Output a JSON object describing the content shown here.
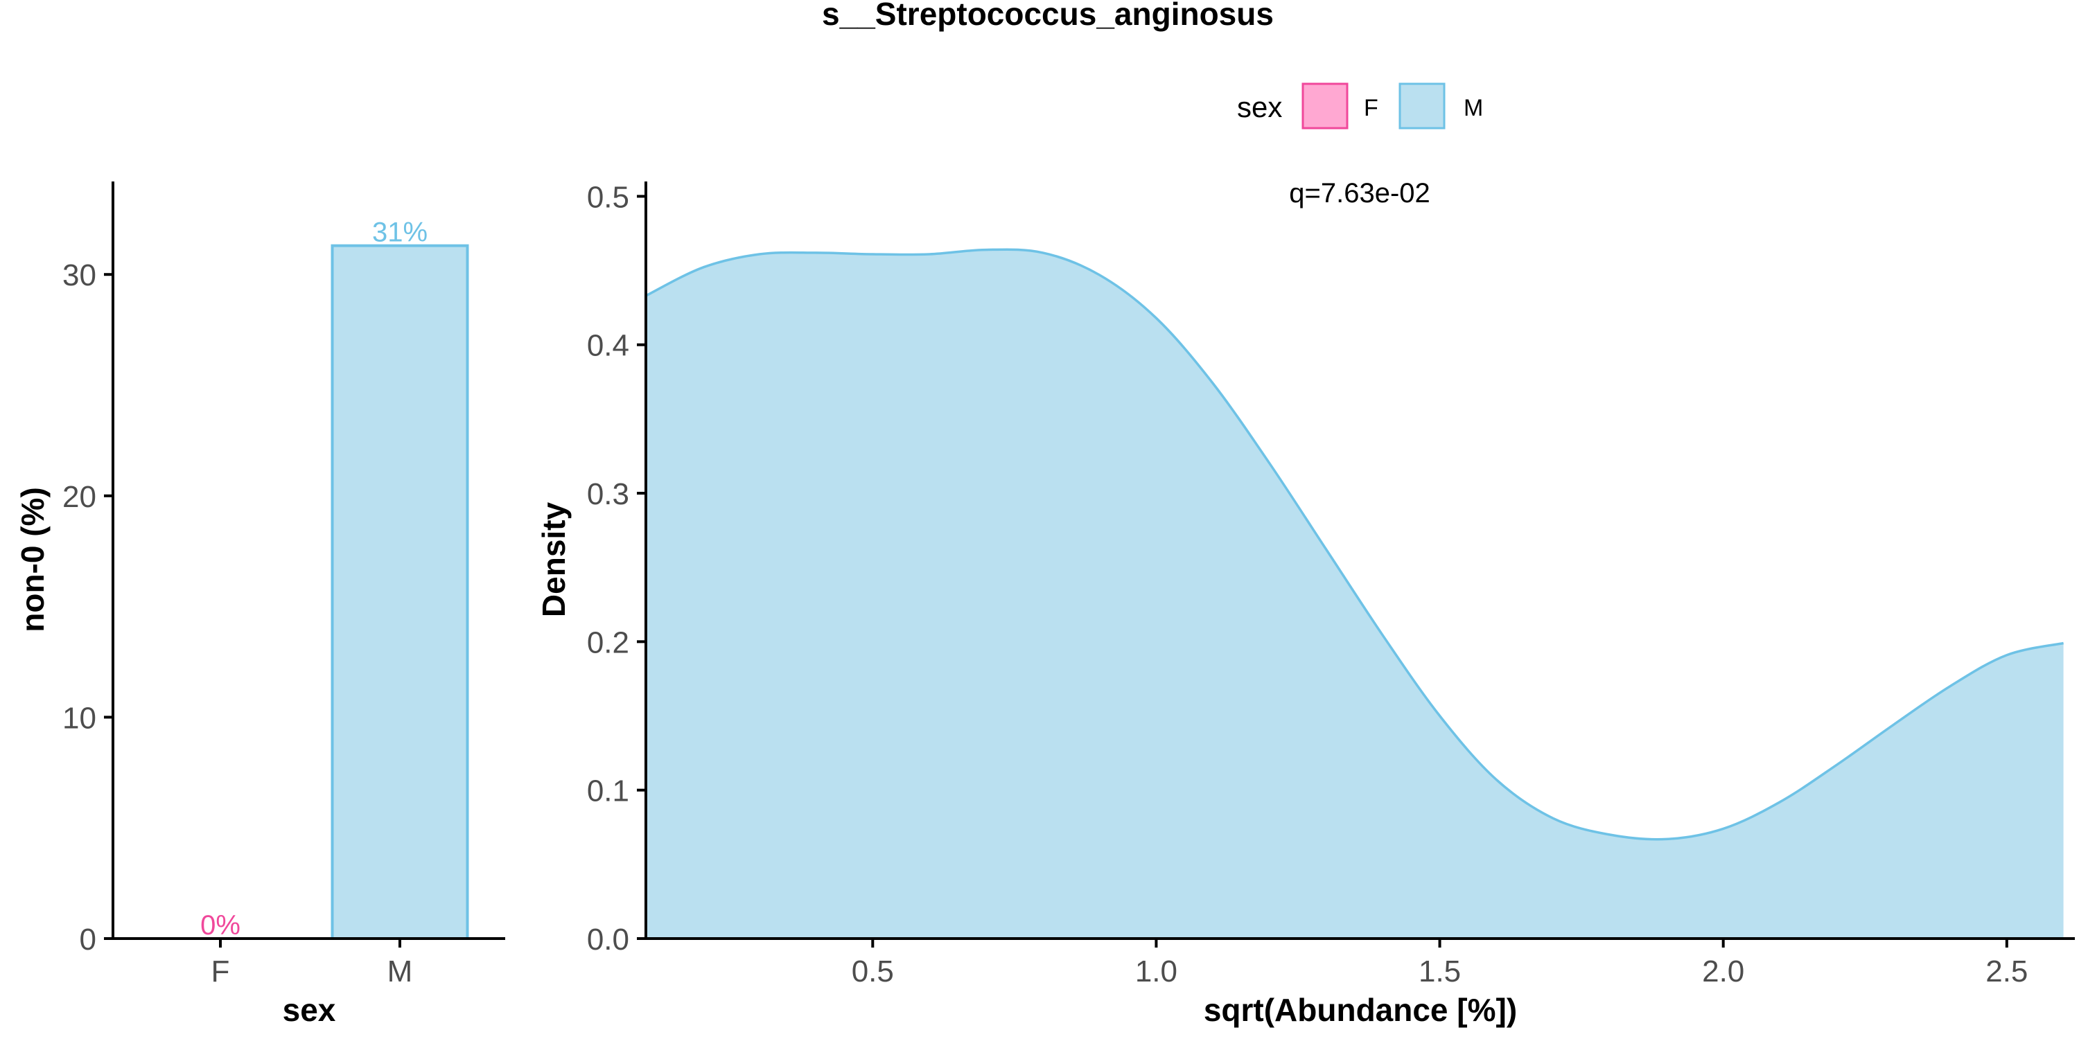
{
  "title": "s__Streptococcus_anginosus",
  "legend": {
    "title": "sex",
    "items": [
      {
        "label": "F",
        "fill": "#FFA8D2",
        "stroke": "#F0489B"
      },
      {
        "label": "M",
        "fill": "#BAE0F0",
        "stroke": "#6EC2E6"
      }
    ]
  },
  "colors": {
    "F_fill": "#FFA8D2",
    "F_stroke": "#F0489B",
    "F_text": "#F0489B",
    "M_fill": "#BAE0F0",
    "M_stroke": "#6EC2E6",
    "M_text": "#6EC2E6",
    "axis": "#000000",
    "tick_text": "#4d4d4d"
  },
  "chart_data": [
    {
      "type": "bar",
      "categories": [
        "F",
        "M"
      ],
      "values": [
        0,
        31.3
      ],
      "value_labels": [
        "0%",
        "31%"
      ],
      "xlabel": "sex",
      "ylabel": "non-0 (%)",
      "ylim": [
        0,
        34.2
      ],
      "yticks": [
        0,
        10,
        20,
        30
      ],
      "ytick_labels": [
        "0",
        "10",
        "20",
        "30"
      ],
      "grid": false
    },
    {
      "type": "area",
      "series": [
        {
          "name": "M",
          "x": [
            0.1,
            0.2,
            0.3,
            0.4,
            0.5,
            0.6,
            0.7,
            0.8,
            0.9,
            1.0,
            1.1,
            1.2,
            1.3,
            1.4,
            1.5,
            1.6,
            1.7,
            1.8,
            1.9,
            2.0,
            2.1,
            2.2,
            2.3,
            2.4,
            2.5,
            2.6
          ],
          "y": [
            0.433,
            0.452,
            0.461,
            0.462,
            0.461,
            0.461,
            0.464,
            0.462,
            0.447,
            0.418,
            0.374,
            0.32,
            0.262,
            0.204,
            0.15,
            0.107,
            0.081,
            0.07,
            0.067,
            0.074,
            0.092,
            0.117,
            0.144,
            0.17,
            0.191,
            0.199
          ]
        }
      ],
      "xlabel": "sqrt(Abundance [%])",
      "ylabel": "Density",
      "xlim": [
        0.1,
        2.62
      ],
      "ylim": [
        0.0,
        0.51
      ],
      "xticks": [
        0.5,
        1.0,
        1.5,
        2.0,
        2.5
      ],
      "xtick_labels": [
        "0.5",
        "1.0",
        "1.5",
        "2.0",
        "2.5"
      ],
      "yticks": [
        0.0,
        0.1,
        0.2,
        0.3,
        0.4,
        0.5
      ],
      "ytick_labels": [
        "0.0",
        "0.1",
        "0.2",
        "0.3",
        "0.4",
        "0.5"
      ],
      "annotation": "q=7.63e-02",
      "grid": false
    }
  ]
}
